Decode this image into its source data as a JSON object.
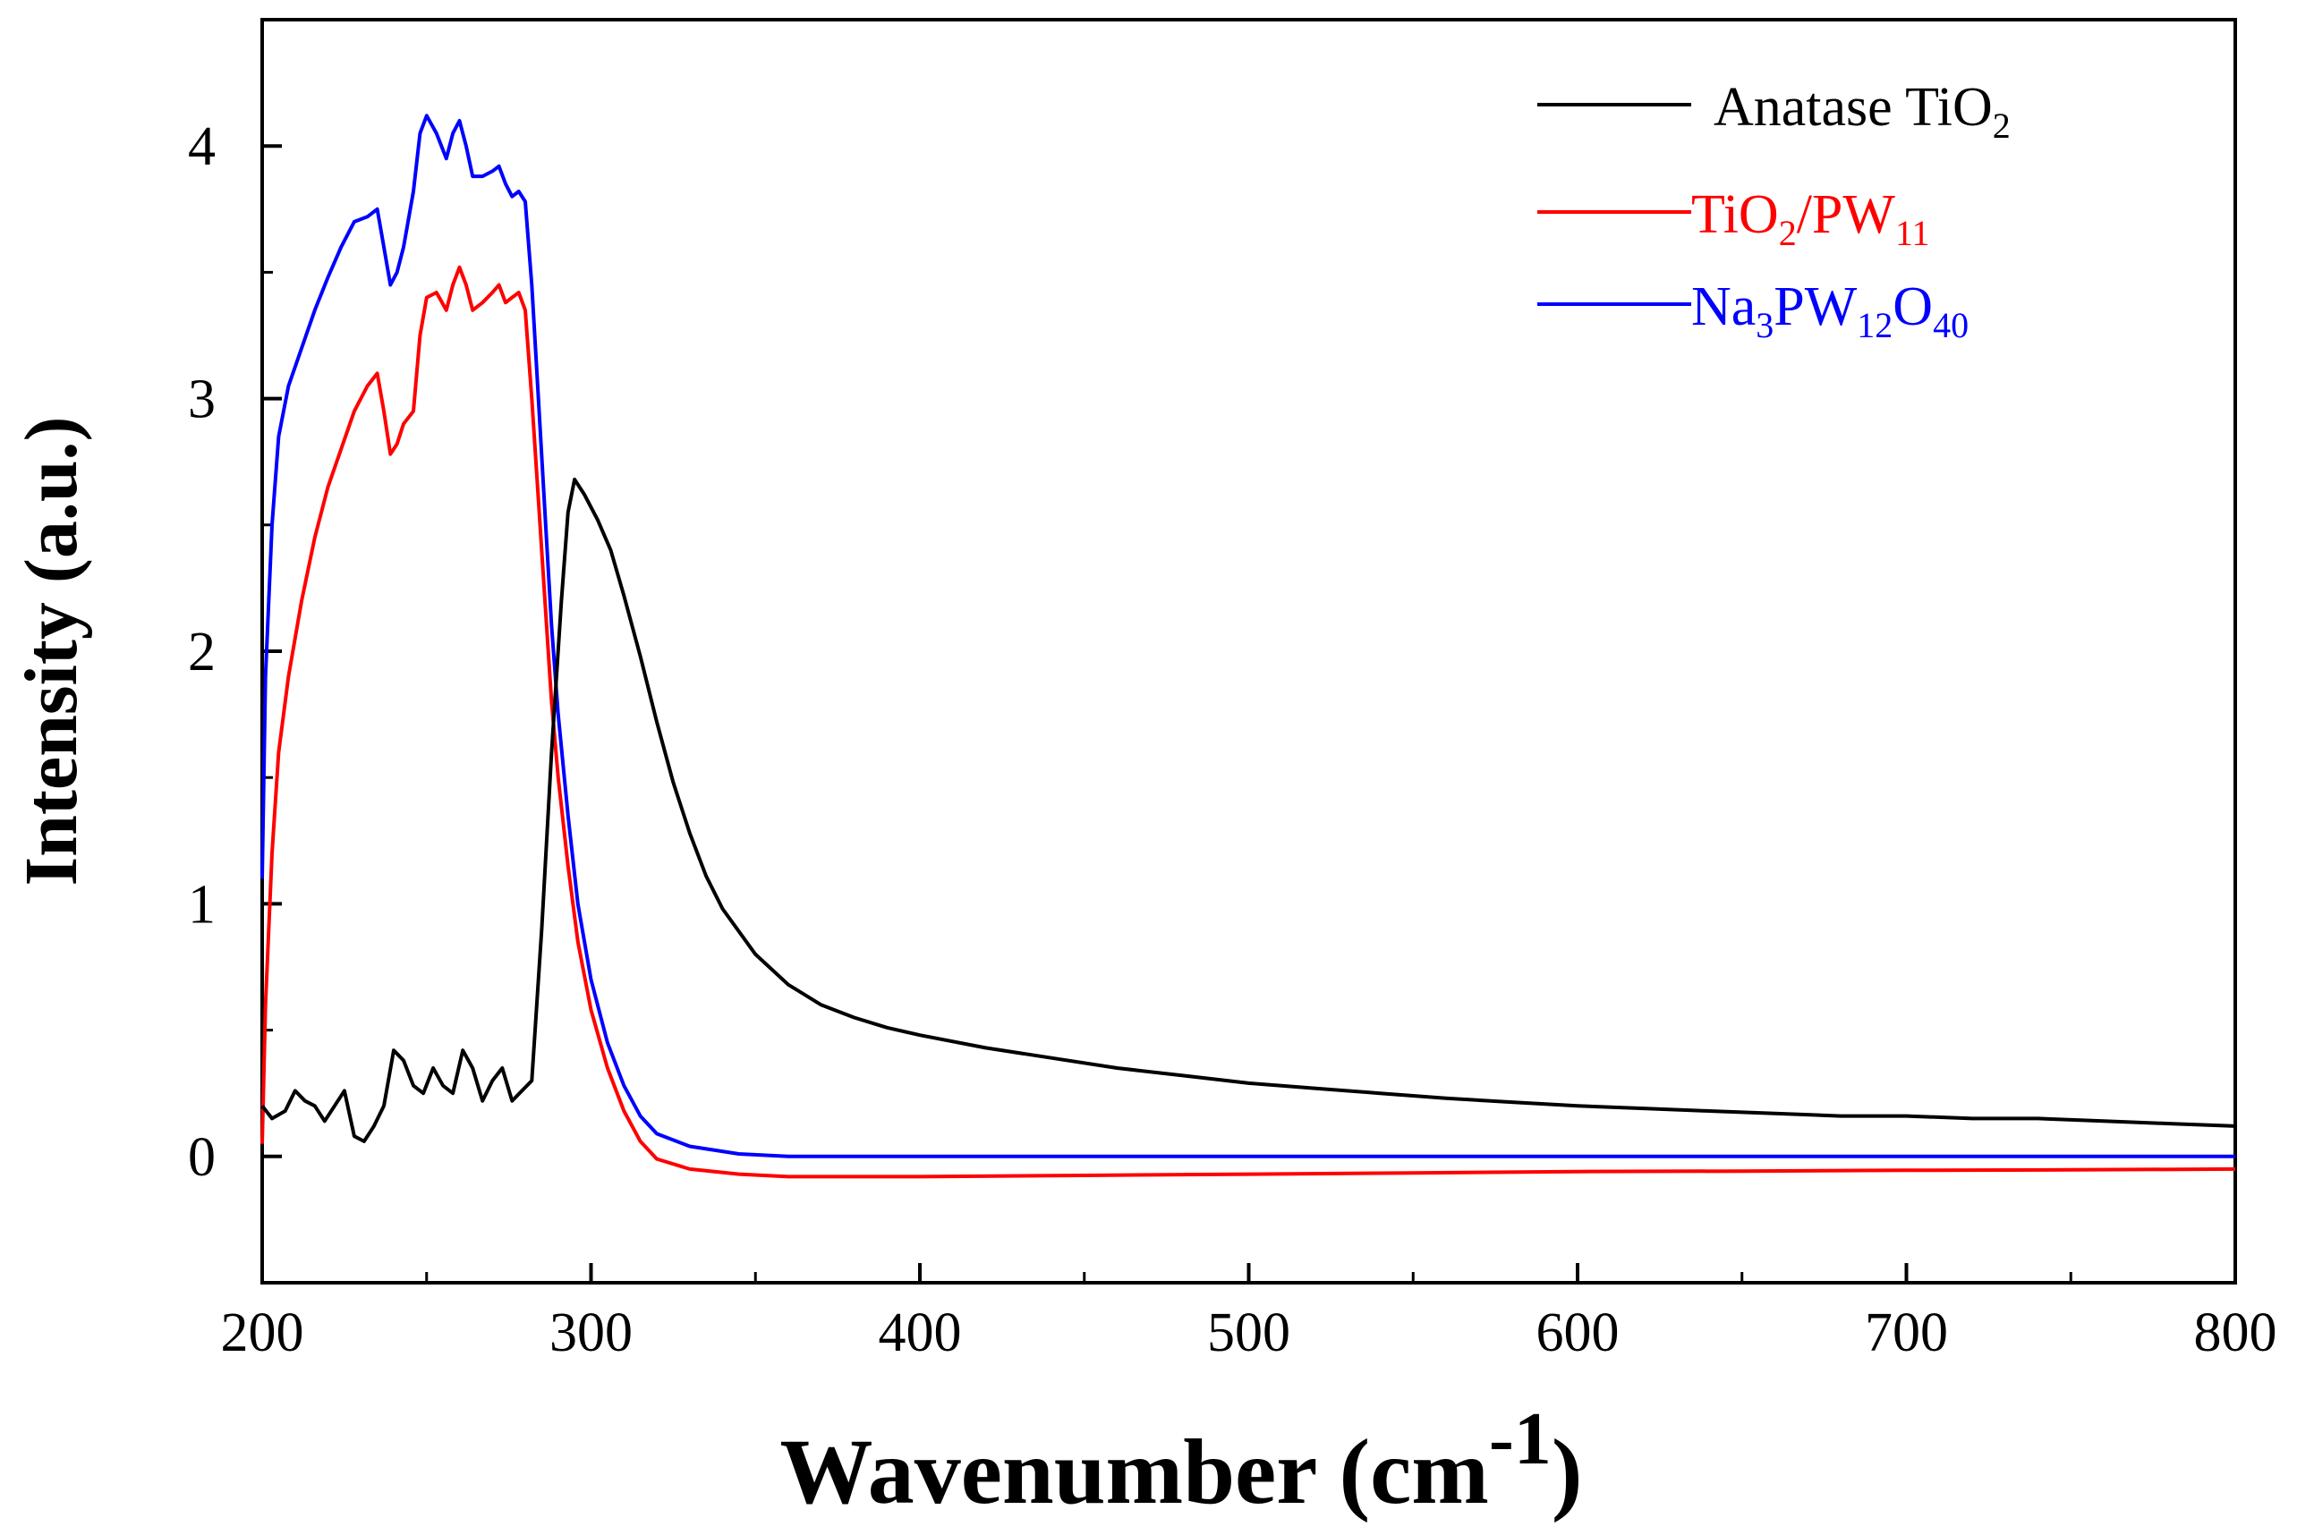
{
  "chart_data": {
    "type": "line",
    "title": "",
    "xlabel": "Wavenumber (cm",
    "xlabel_superscript": "-1",
    "xlabel_close": ")",
    "ylabel": "Intensity (a.u.)",
    "xlim": [
      200,
      800
    ],
    "ylim": [
      -0.5,
      4.5
    ],
    "xticks": [
      200,
      300,
      400,
      500,
      600,
      700,
      800
    ],
    "xtick_labels": [
      "200",
      "300",
      "400",
      "500",
      "600",
      "700",
      "800"
    ],
    "yticks": [
      0,
      1,
      2,
      3,
      4
    ],
    "ytick_labels": [
      "0",
      "1",
      "2",
      "3",
      "4"
    ],
    "legend_position": "top-right",
    "series": [
      {
        "name": "Anatase TiO2",
        "legend_main": "Anatase TiO",
        "legend_sub": "2",
        "color": "#000000",
        "points": [
          [
            200,
            0.2
          ],
          [
            203,
            0.15
          ],
          [
            207,
            0.18
          ],
          [
            210,
            0.26
          ],
          [
            213,
            0.22
          ],
          [
            216,
            0.2
          ],
          [
            219,
            0.14
          ],
          [
            222,
            0.2
          ],
          [
            225,
            0.26
          ],
          [
            228,
            0.08
          ],
          [
            231,
            0.06
          ],
          [
            234,
            0.12
          ],
          [
            237,
            0.2
          ],
          [
            240,
            0.42
          ],
          [
            243,
            0.38
          ],
          [
            246,
            0.28
          ],
          [
            249,
            0.25
          ],
          [
            252,
            0.35
          ],
          [
            255,
            0.28
          ],
          [
            258,
            0.25
          ],
          [
            261,
            0.42
          ],
          [
            264,
            0.35
          ],
          [
            267,
            0.22
          ],
          [
            270,
            0.3
          ],
          [
            273,
            0.35
          ],
          [
            276,
            0.22
          ],
          [
            279,
            0.26
          ],
          [
            282,
            0.3
          ],
          [
            285,
            0.9
          ],
          [
            288,
            1.6
          ],
          [
            291,
            2.2
          ],
          [
            293,
            2.55
          ],
          [
            295,
            2.68
          ],
          [
            298,
            2.62
          ],
          [
            302,
            2.52
          ],
          [
            306,
            2.4
          ],
          [
            310,
            2.22
          ],
          [
            315,
            1.98
          ],
          [
            320,
            1.72
          ],
          [
            325,
            1.48
          ],
          [
            330,
            1.28
          ],
          [
            335,
            1.11
          ],
          [
            340,
            0.98
          ],
          [
            350,
            0.8
          ],
          [
            360,
            0.68
          ],
          [
            370,
            0.6
          ],
          [
            380,
            0.55
          ],
          [
            390,
            0.51
          ],
          [
            400,
            0.48
          ],
          [
            420,
            0.43
          ],
          [
            440,
            0.39
          ],
          [
            460,
            0.35
          ],
          [
            480,
            0.32
          ],
          [
            500,
            0.29
          ],
          [
            520,
            0.27
          ],
          [
            540,
            0.25
          ],
          [
            560,
            0.23
          ],
          [
            580,
            0.215
          ],
          [
            600,
            0.2
          ],
          [
            620,
            0.19
          ],
          [
            640,
            0.18
          ],
          [
            660,
            0.17
          ],
          [
            680,
            0.16
          ],
          [
            700,
            0.16
          ],
          [
            720,
            0.15
          ],
          [
            740,
            0.15
          ],
          [
            760,
            0.14
          ],
          [
            780,
            0.13
          ],
          [
            800,
            0.12
          ]
        ]
      },
      {
        "name": "TiO2/PW11",
        "legend_main": "TiO",
        "legend_sub": "2",
        "legend_main2": "/PW",
        "legend_sub2": "11",
        "color": "#ff0000",
        "points": [
          [
            200,
            0.05
          ],
          [
            201,
            0.6
          ],
          [
            203,
            1.2
          ],
          [
            205,
            1.6
          ],
          [
            208,
            1.9
          ],
          [
            212,
            2.2
          ],
          [
            216,
            2.45
          ],
          [
            220,
            2.65
          ],
          [
            224,
            2.8
          ],
          [
            228,
            2.95
          ],
          [
            232,
            3.05
          ],
          [
            235,
            3.1
          ],
          [
            237,
            2.95
          ],
          [
            239,
            2.78
          ],
          [
            241,
            2.82
          ],
          [
            243,
            2.9
          ],
          [
            246,
            2.95
          ],
          [
            248,
            3.25
          ],
          [
            250,
            3.4
          ],
          [
            253,
            3.42
          ],
          [
            256,
            3.35
          ],
          [
            258,
            3.45
          ],
          [
            260,
            3.52
          ],
          [
            262,
            3.45
          ],
          [
            264,
            3.35
          ],
          [
            267,
            3.38
          ],
          [
            270,
            3.42
          ],
          [
            272,
            3.45
          ],
          [
            274,
            3.38
          ],
          [
            276,
            3.4
          ],
          [
            278,
            3.42
          ],
          [
            280,
            3.35
          ],
          [
            282,
            3.0
          ],
          [
            284,
            2.6
          ],
          [
            286,
            2.2
          ],
          [
            288,
            1.8
          ],
          [
            290,
            1.5
          ],
          [
            293,
            1.15
          ],
          [
            296,
            0.85
          ],
          [
            300,
            0.58
          ],
          [
            305,
            0.35
          ],
          [
            310,
            0.18
          ],
          [
            315,
            0.06
          ],
          [
            320,
            -0.01
          ],
          [
            330,
            -0.05
          ],
          [
            345,
            -0.07
          ],
          [
            360,
            -0.08
          ],
          [
            400,
            -0.08
          ],
          [
            450,
            -0.075
          ],
          [
            500,
            -0.07
          ],
          [
            550,
            -0.065
          ],
          [
            600,
            -0.06
          ],
          [
            650,
            -0.058
          ],
          [
            700,
            -0.055
          ],
          [
            750,
            -0.053
          ],
          [
            800,
            -0.05
          ]
        ]
      },
      {
        "name": "Na3PW12O40",
        "legend_main": "Na",
        "legend_sub": "3",
        "legend_main2": "PW",
        "legend_sub2": "12",
        "legend_main3": "O",
        "legend_sub3": "40",
        "color": "#0000ff",
        "points": [
          [
            200,
            1.1
          ],
          [
            201,
            1.9
          ],
          [
            203,
            2.5
          ],
          [
            205,
            2.85
          ],
          [
            208,
            3.05
          ],
          [
            212,
            3.2
          ],
          [
            216,
            3.35
          ],
          [
            220,
            3.48
          ],
          [
            224,
            3.6
          ],
          [
            228,
            3.7
          ],
          [
            232,
            3.72
          ],
          [
            235,
            3.75
          ],
          [
            237,
            3.6
          ],
          [
            239,
            3.45
          ],
          [
            241,
            3.5
          ],
          [
            243,
            3.6
          ],
          [
            246,
            3.82
          ],
          [
            248,
            4.05
          ],
          [
            250,
            4.12
          ],
          [
            253,
            4.05
          ],
          [
            256,
            3.95
          ],
          [
            258,
            4.05
          ],
          [
            260,
            4.1
          ],
          [
            262,
            4.0
          ],
          [
            264,
            3.88
          ],
          [
            267,
            3.88
          ],
          [
            270,
            3.9
          ],
          [
            272,
            3.92
          ],
          [
            274,
            3.85
          ],
          [
            276,
            3.8
          ],
          [
            278,
            3.82
          ],
          [
            280,
            3.78
          ],
          [
            282,
            3.45
          ],
          [
            284,
            3.0
          ],
          [
            286,
            2.55
          ],
          [
            288,
            2.1
          ],
          [
            290,
            1.75
          ],
          [
            293,
            1.35
          ],
          [
            296,
            1.0
          ],
          [
            300,
            0.7
          ],
          [
            305,
            0.45
          ],
          [
            310,
            0.28
          ],
          [
            315,
            0.16
          ],
          [
            320,
            0.09
          ],
          [
            330,
            0.04
          ],
          [
            345,
            0.01
          ],
          [
            360,
            0.0
          ],
          [
            400,
            0.0
          ],
          [
            500,
            0.0
          ],
          [
            600,
            0.0
          ],
          [
            700,
            0.0
          ],
          [
            800,
            0.0
          ]
        ]
      }
    ]
  }
}
